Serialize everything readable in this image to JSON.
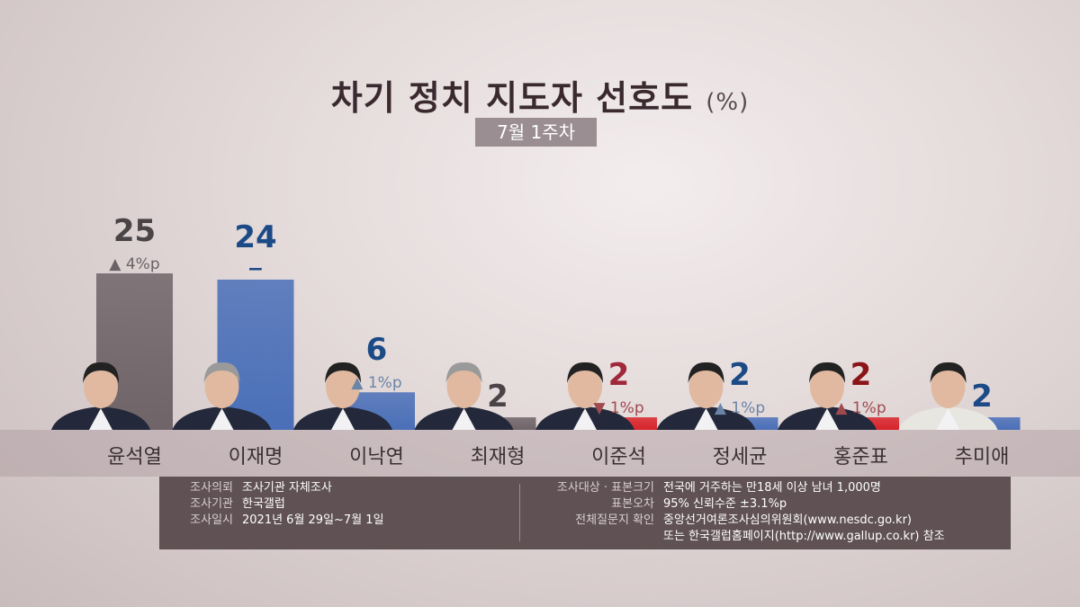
{
  "title": "차기 정치 지도자 선호도",
  "title_unit": "(%)",
  "subtitle": "7월 1주차",
  "chart_data": {
    "type": "bar",
    "title": "차기 정치 지도자 선호도",
    "unit": "%",
    "ylim": [
      0,
      25
    ],
    "grid": false,
    "categories": [
      "윤석열",
      "이재명",
      "이낙연",
      "최재형",
      "이준석",
      "정세균",
      "홍준표",
      "추미애"
    ],
    "values": [
      25,
      24,
      6,
      2,
      2,
      2,
      2,
      2
    ],
    "changes": [
      "▲ 4%p",
      "−",
      "▲ 1%p",
      "",
      "▼ 1%p",
      "▲ 1%p",
      "▲ 1%p",
      ""
    ],
    "bar_colors": [
      "#6f6468",
      "#4a6fb8",
      "#4a6fb8",
      "#6f6468",
      "#d8232a",
      "#4a6fb8",
      "#d8232a",
      "#4a6fb8"
    ],
    "value_colors": [
      "#4a4446",
      "#1b4a86",
      "#1b4a86",
      "#4a4446",
      "#a0283a",
      "#1b4a86",
      "#8a1418",
      "#1b4a86"
    ],
    "change_colors": [
      "#6a6266",
      "#1b4a86",
      "#6a85a8",
      "#6a6266",
      "#a04a50",
      "#6a85a8",
      "#a04a50",
      "#6a6266"
    ]
  },
  "footnote": {
    "left": [
      {
        "k": "조사의뢰",
        "v": "조사기관 자체조사"
      },
      {
        "k": "조사기관",
        "v": "한국갤럽"
      },
      {
        "k": "조사일시",
        "v": "2021년 6월 29일~7월 1일"
      }
    ],
    "right": [
      {
        "k": "조사대상 · 표본크기",
        "v": "전국에 거주하는 만18세 이상 남녀 1,000명"
      },
      {
        "k": "표본오차",
        "v": "95% 신뢰수준 ±3.1%p"
      },
      {
        "k": "전체질문지 확인",
        "v": "중앙선거여론조사심의위원회(www.nesdc.go.kr)"
      },
      {
        "k": "",
        "v": "또는 한국갤럽홈페이지(http://www.gallup.co.kr) 참조"
      }
    ]
  }
}
